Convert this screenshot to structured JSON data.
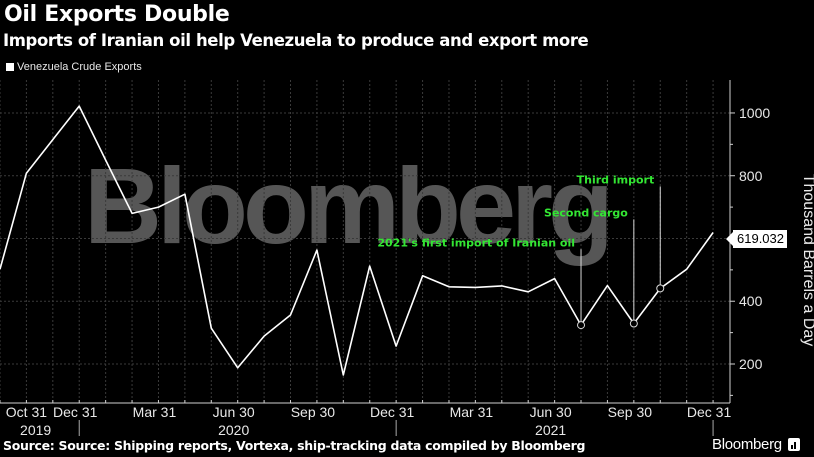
{
  "header": {
    "title": "Oil Exports Double",
    "subtitle": "Imports of Iranian oil help Venezuela to produce and export more"
  },
  "legend": {
    "label": "Venezuela Crude Exports",
    "color": "#ffffff"
  },
  "watermark": "Bloomberg",
  "footer": {
    "source": "Source: Source: Shipping reports, Vortexa, ship-tracking data compiled by Bloomberg",
    "brand": "Bloomberg"
  },
  "last_value_label": "619.032",
  "chart_data": {
    "type": "line",
    "title": "Oil Exports Double",
    "subtitle": "Imports of Iranian oil help Venezuela to produce and export more",
    "xlabel": "",
    "ylabel": "Thousand Barrels a Day",
    "ylim": [
      50,
      1100
    ],
    "y_ticks": [
      200,
      400,
      600,
      800,
      1000
    ],
    "grid": true,
    "legend_position": "top-left",
    "x_tick_labels": [
      {
        "label": "Oct 31",
        "index": 1
      },
      {
        "label": "Dec 31",
        "index": 3
      },
      {
        "label": "Mar 31",
        "index": 6
      },
      {
        "label": "Jun 30",
        "index": 9
      },
      {
        "label": "Sep 30",
        "index": 12
      },
      {
        "label": "Dec 31",
        "index": 15
      },
      {
        "label": "Mar 31",
        "index": 18
      },
      {
        "label": "Jun 30",
        "index": 21
      },
      {
        "label": "Sep 30",
        "index": 24
      },
      {
        "label": "Dec 31",
        "index": 27
      }
    ],
    "x_year_labels": [
      {
        "label": "2019",
        "index": 1.5
      },
      {
        "label": "2020",
        "index": 9
      },
      {
        "label": "2021",
        "index": 21
      }
    ],
    "x": [
      "2019-09",
      "2019-10",
      "2019-11",
      "2019-12",
      "2020-01",
      "2020-02",
      "2020-03",
      "2020-04",
      "2020-05",
      "2020-06",
      "2020-07",
      "2020-08",
      "2020-09",
      "2020-10",
      "2020-11",
      "2020-12",
      "2021-01",
      "2021-02",
      "2021-03",
      "2021-04",
      "2021-05",
      "2021-06",
      "2021-07",
      "2021-08",
      "2021-09",
      "2021-10",
      "2021-11",
      "2021-12"
    ],
    "series": [
      {
        "name": "Venezuela Crude Exports",
        "color": "#ffffff",
        "values": [
          502,
          808,
          915,
          1022,
          850,
          680,
          700,
          741,
          314,
          188,
          289,
          356,
          563,
          165,
          512,
          257,
          481,
          446,
          444,
          449,
          430,
          472,
          324,
          450,
          329,
          441,
          502,
          619.032
        ]
      }
    ],
    "annotations": [
      {
        "text": "2021's first import of Iranian oil",
        "index": 22,
        "value": 324,
        "label_value": 585
      },
      {
        "text": "Second cargo",
        "index": 24,
        "value": 329,
        "label_value": 680
      },
      {
        "text": "Third import",
        "index": 25,
        "value": 441,
        "label_value": 785
      }
    ],
    "last_value": 619.032
  }
}
